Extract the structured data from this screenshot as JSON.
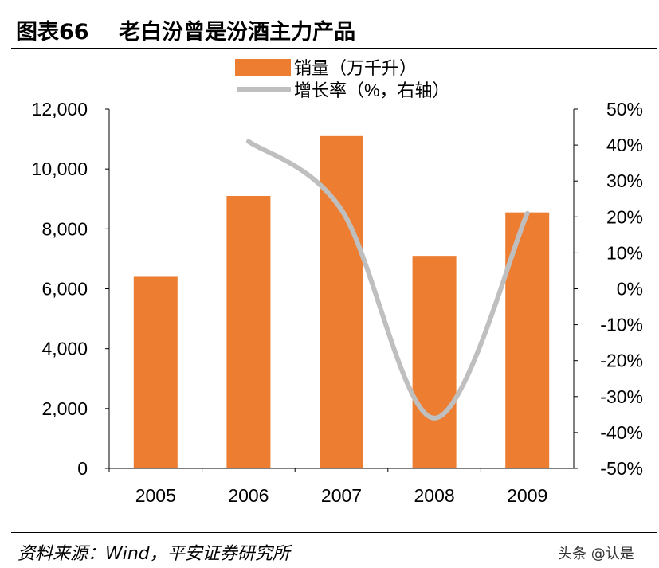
{
  "header": {
    "title": "图表66    老白汾曾是汾酒主力产品"
  },
  "footer": {
    "source": "资料来源：Wind，平安证券研究所",
    "watermark": "头条 @认是"
  },
  "chart_data": {
    "type": "bar+line",
    "categories": [
      "2005",
      "2006",
      "2007",
      "2008",
      "2009"
    ],
    "series": [
      {
        "name": "销量（万千升）",
        "type": "bar",
        "axis": "left",
        "color": "#ED7D31",
        "values": [
          6400,
          9100,
          11100,
          7100,
          8550
        ]
      },
      {
        "name": "增长率（%，右轴）",
        "type": "line",
        "axis": "right",
        "color": "#BFBFBF",
        "smooth": true,
        "x": [
          "2006",
          "2007",
          "2008",
          "2009"
        ],
        "values": [
          41,
          22,
          -36,
          21
        ]
      }
    ],
    "y_left": {
      "range": [
        0,
        12000
      ],
      "ticks": [
        "0",
        "2,000",
        "4,000",
        "6,000",
        "8,000",
        "10,000",
        "12,000"
      ]
    },
    "y_right": {
      "range": [
        -50,
        50
      ],
      "ticks": [
        "-50%",
        "-40%",
        "-30%",
        "-20%",
        "-10%",
        "0%",
        "10%",
        "20%",
        "30%",
        "40%",
        "50%"
      ]
    },
    "grid": false,
    "legend": "top-center"
  }
}
